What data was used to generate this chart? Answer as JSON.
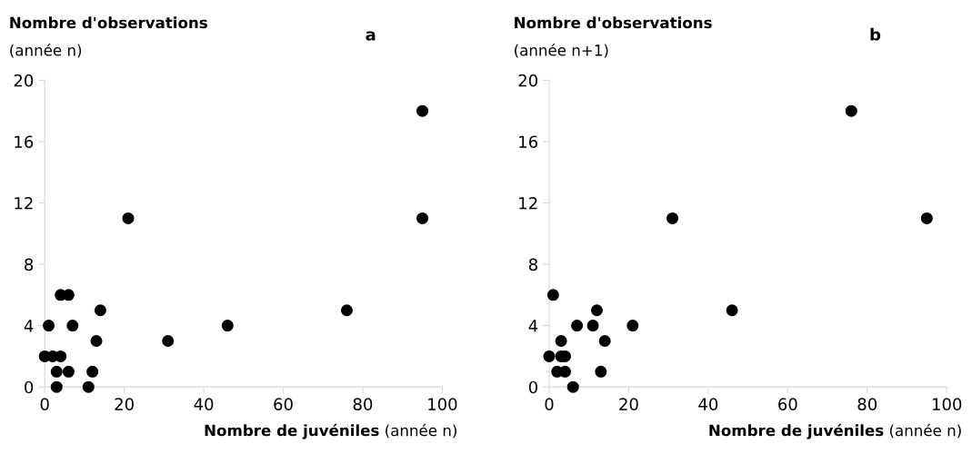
{
  "chart_data": [
    {
      "type": "scatter",
      "title": "a",
      "ylabel": "Nombre d'observations (année n)",
      "xlabel": "Nombre de juvéniles (année n)",
      "series": [
        {
          "color": "#000000",
          "x": [
            4,
            6,
            14,
            1,
            7,
            13,
            31,
            0,
            2,
            4,
            3,
            6,
            12,
            3,
            11,
            21,
            46,
            76,
            95,
            95
          ],
          "values": [
            6,
            6,
            5,
            4,
            4,
            3,
            3,
            2,
            2,
            2,
            1,
            1,
            1,
            0,
            0,
            11,
            4,
            5,
            18,
            11
          ]
        }
      ],
      "xlim": [
        0,
        100
      ],
      "xticks": [
        0,
        20,
        40,
        60,
        80,
        100
      ],
      "ylim": [
        0,
        20
      ],
      "yticks": [
        0,
        4,
        8,
        12,
        16,
        20
      ],
      "marker": "circle",
      "grid": false,
      "legend": false
    },
    {
      "type": "scatter",
      "title": "b",
      "ylabel": "Nombre d'observations (année n+1)",
      "xlabel": "Nombre de juvéniles (année n)",
      "series": [
        {
          "color": "#000000",
          "x": [
            1,
            12,
            7,
            11,
            21,
            3,
            14,
            0,
            3,
            4,
            2,
            4,
            13,
            6,
            31,
            46,
            76,
            95
          ],
          "values": [
            6,
            5,
            4,
            4,
            4,
            3,
            3,
            2,
            2,
            2,
            1,
            1,
            1,
            0,
            11,
            5,
            18,
            11
          ]
        }
      ],
      "xlim": [
        0,
        100
      ],
      "xticks": [
        0,
        20,
        40,
        60,
        80,
        100
      ],
      "ylim": [
        0,
        20
      ],
      "yticks": [
        0,
        4,
        8,
        12,
        16,
        20
      ],
      "marker": "circle",
      "grid": false,
      "legend": false
    }
  ]
}
